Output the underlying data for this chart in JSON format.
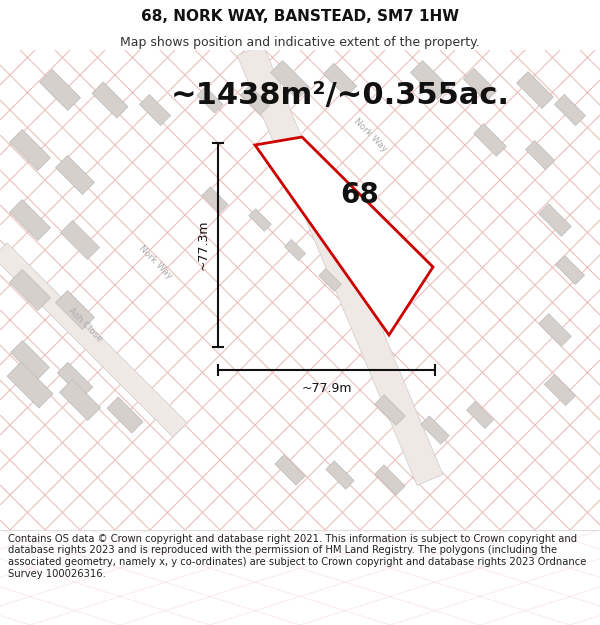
{
  "title": "68, NORK WAY, BANSTEAD, SM7 1HW",
  "subtitle": "Map shows position and indicative extent of the property.",
  "area_label": "~1438m²/~0.355ac.",
  "plot_number": "68",
  "dim_height": "~77.3m",
  "dim_width": "~77.9m",
  "footer": "Contains OS data © Crown copyright and database right 2021. This information is subject to Crown copyright and database rights 2023 and is reproduced with the permission of HM Land Registry. The polygons (including the associated geometry, namely x, y co-ordinates) are subject to Crown copyright and database rights 2023 Ordnance Survey 100026316.",
  "bg_color": "#ffffff",
  "map_bg": "#ffffff",
  "road_color": "#e8b4b0",
  "building_color": "#d6d0cc",
  "building_edge": "#bbbbbb",
  "road_edge_color": "#cccccc",
  "plot_edge_color": "#cc0000",
  "title_fontsize": 11,
  "subtitle_fontsize": 9,
  "area_fontsize": 22,
  "plot_num_fontsize": 20,
  "footer_fontsize": 7.2,
  "street_label_color": "#aaaaaa",
  "street_label_size": 6.5
}
